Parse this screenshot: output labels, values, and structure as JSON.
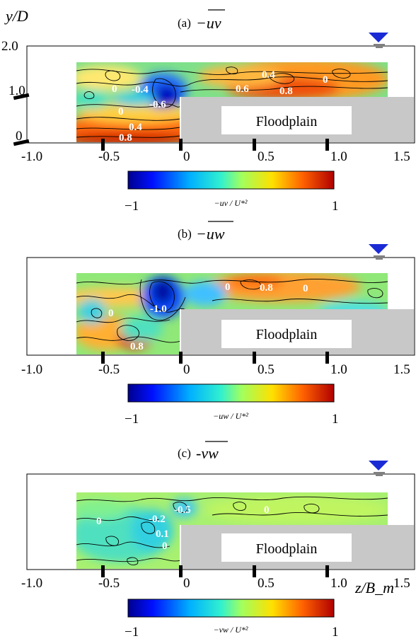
{
  "chart_data": [
    {
      "type": "heatmap",
      "title": "(a) −uv",
      "panel_label": "(a)",
      "quantity": "−uv",
      "xlim": [
        -1.0,
        1.5
      ],
      "ylim": [
        0,
        2.0
      ],
      "ylabel": "y/D",
      "x_ticks": [
        "-1.0",
        "-0.5",
        "0",
        "0.5",
        "1.0",
        "1.5"
      ],
      "y_ticks": [
        "2.0",
        "1.0",
        "0"
      ],
      "region_label": "Floodplain",
      "contour_labels": [
        "0",
        "-0.4",
        "-0.6",
        "0",
        "0.4",
        "0.8",
        "0.4",
        "0.6",
        "0.8",
        "0"
      ],
      "colorbar": {
        "min": "−1",
        "max": "1",
        "label": "−uv / U*²"
      }
    },
    {
      "type": "heatmap",
      "title": "(b) −uw",
      "panel_label": "(b)",
      "quantity": "−uw",
      "xlim": [
        -1.0,
        1.5
      ],
      "x_ticks": [
        "-1.0",
        "-0.5",
        "0",
        "0.5",
        "1.0",
        "1.5"
      ],
      "region_label": "Floodplain",
      "contour_labels": [
        "0",
        "-1.0",
        "0.8",
        "0",
        "0.8",
        "0"
      ],
      "colorbar": {
        "min": "−1",
        "max": "1",
        "label": "−uw / U*²"
      }
    },
    {
      "type": "heatmap",
      "title": "(c) -vw",
      "panel_label": "(c)",
      "quantity": "-vw",
      "xlim": [
        -1.0,
        1.5
      ],
      "xlabel": "z/B_m",
      "x_ticks": [
        "-1.0",
        "-0.5",
        "0",
        "0.5",
        "1.0",
        "1.5"
      ],
      "region_label": "Floodplain",
      "contour_labels": [
        "0",
        "-0.2",
        "-0.5",
        "0.1",
        "0",
        "0"
      ],
      "colorbar": {
        "min": "−1",
        "max": "1",
        "label": "−vw / U*²"
      }
    }
  ],
  "colors": {
    "water_surface": "#1a2bd6",
    "floodplain": "#c8c8c8"
  }
}
